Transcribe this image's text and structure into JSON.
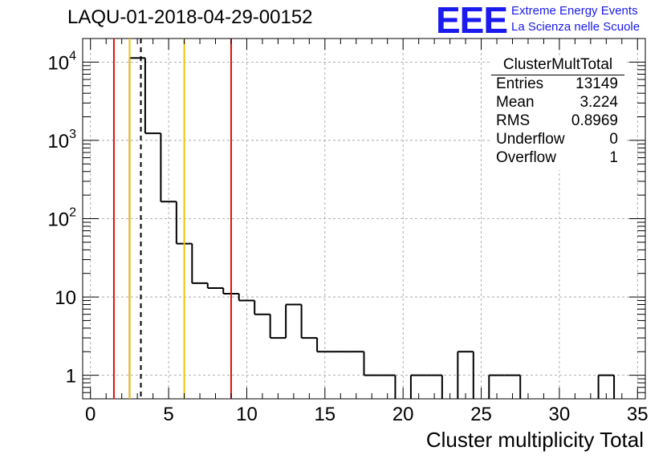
{
  "run_title": "LAQU-01-2018-04-29-00152",
  "logo": {
    "mark": "EEE",
    "line1": "Extreme Energy Events",
    "line2": "La Scienza nelle Scuole"
  },
  "stats_box": {
    "title": "ClusterMultTotal",
    "rows": [
      {
        "key": "Entries",
        "value": "13149"
      },
      {
        "key": "Mean",
        "value": "3.224"
      },
      {
        "key": "RMS",
        "value": "0.8969"
      },
      {
        "key": "Underflow",
        "value": "0"
      },
      {
        "key": "Overflow",
        "value": "1"
      }
    ]
  },
  "colors": {
    "histogram": "#000000",
    "red_line": "#e01010",
    "yellow_line": "#f2c200",
    "grid": "#9a9a9a",
    "logo": "#1a1aee"
  },
  "chart_data": {
    "type": "bar",
    "histogram_style": "step",
    "title": "",
    "xlabel": "Cluster multiplicity Total",
    "ylabel": "",
    "xlim": [
      -0.5,
      35.5
    ],
    "ylim": [
      0.5,
      20000
    ],
    "yscale": "log",
    "grid": true,
    "x_ticks": [
      0,
      5,
      10,
      15,
      20,
      25,
      30,
      35
    ],
    "x_tick_labels": [
      "0",
      "5",
      "10",
      "15",
      "20",
      "25",
      "30",
      "35"
    ],
    "y_ticks": [
      1,
      10,
      100,
      1000,
      10000
    ],
    "y_tick_labels": [
      {
        "base": "1",
        "exp": ""
      },
      {
        "base": "10",
        "exp": ""
      },
      {
        "base": "10",
        "exp": "2"
      },
      {
        "base": "10",
        "exp": "3"
      },
      {
        "base": "10",
        "exp": "4"
      }
    ],
    "bin_centers": [
      0,
      1,
      2,
      3,
      4,
      5,
      6,
      7,
      8,
      9,
      10,
      11,
      12,
      13,
      14,
      15,
      16,
      17,
      18,
      19,
      20,
      21,
      22,
      23,
      24,
      25,
      26,
      27,
      28,
      29,
      30,
      31,
      32,
      33,
      34,
      35
    ],
    "counts": [
      0,
      0,
      0,
      11300,
      1230,
      165,
      48,
      15,
      13,
      11,
      9,
      6,
      3,
      8,
      3,
      2,
      2,
      2,
      1,
      1,
      0,
      1,
      1,
      0,
      2,
      0,
      1,
      1,
      0,
      0,
      0,
      0,
      0,
      1,
      0,
      0
    ],
    "vertical_lines": [
      {
        "x": 1.5,
        "color": "#e01010",
        "style": "solid"
      },
      {
        "x": 2.5,
        "color": "#f2c200",
        "style": "solid"
      },
      {
        "x": 3.224,
        "color": "#000000",
        "style": "dashed"
      },
      {
        "x": 6.0,
        "color": "#f2c200",
        "style": "solid"
      },
      {
        "x": 9.0,
        "color": "#e01010",
        "style": "solid"
      }
    ]
  }
}
